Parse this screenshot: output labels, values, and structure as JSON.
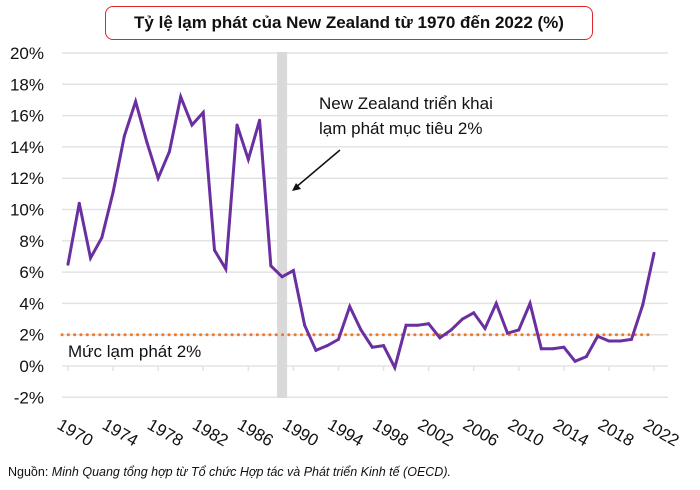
{
  "chart_data": {
    "type": "line",
    "title": "Tỷ lệ lạm phát của New Zealand từ 1970 đến 2022 (%)",
    "xlabel": "",
    "ylabel": "",
    "ylim": [
      -2,
      20
    ],
    "xlim": [
      1970,
      2022
    ],
    "y_ticks": [
      "-2%",
      "0%",
      "2%",
      "4%",
      "6%",
      "8%",
      "10%",
      "12%",
      "14%",
      "16%",
      "18%",
      "20%"
    ],
    "y_tick_values": [
      -2,
      0,
      2,
      4,
      6,
      8,
      10,
      12,
      14,
      16,
      18,
      20
    ],
    "x_ticks": [
      "1970",
      "1974",
      "1978",
      "1982",
      "1986",
      "1990",
      "1994",
      "1998",
      "2002",
      "2006",
      "2010",
      "2014",
      "2018",
      "2022"
    ],
    "grid": true,
    "series": [
      {
        "name": "Tỷ lệ lạm phát",
        "color": "#6a2fa0",
        "x": [
          1970,
          1971,
          1972,
          1973,
          1974,
          1975,
          1976,
          1977,
          1978,
          1979,
          1980,
          1981,
          1982,
          1983,
          1984,
          1985,
          1986,
          1987,
          1988,
          1989,
          1990,
          1991,
          1992,
          1993,
          1994,
          1995,
          1996,
          1997,
          1998,
          1999,
          2000,
          2001,
          2002,
          2003,
          2004,
          2005,
          2006,
          2007,
          2008,
          2009,
          2010,
          2011,
          2012,
          2013,
          2014,
          2015,
          2016,
          2017,
          2018,
          2019,
          2020,
          2021,
          2022
        ],
        "values": [
          6.5,
          10.4,
          6.9,
          8.2,
          11.1,
          14.7,
          16.9,
          14.3,
          12.0,
          13.7,
          17.2,
          15.4,
          16.2,
          7.4,
          6.2,
          15.4,
          13.2,
          15.7,
          6.4,
          5.7,
          6.1,
          2.6,
          1.0,
          1.3,
          1.7,
          3.8,
          2.3,
          1.2,
          1.3,
          -0.1,
          2.6,
          2.6,
          2.7,
          1.8,
          2.3,
          3.0,
          3.4,
          2.4,
          4.0,
          2.1,
          2.3,
          4.0,
          1.1,
          1.1,
          1.2,
          0.3,
          0.6,
          1.9,
          1.6,
          1.6,
          1.7,
          3.9,
          7.2
        ]
      }
    ],
    "reference_line": {
      "value": 2,
      "label": "Mức lạm phát 2%",
      "color": "#f07a28"
    },
    "highlight_band": {
      "year": 1989,
      "color": "#d9d9d9"
    },
    "annotation": {
      "line1": "New Zealand triển khai",
      "line2": "lạm phát mục tiêu 2%"
    }
  },
  "source": {
    "prefix": "Nguồn: ",
    "text": "Minh Quang tổng hợp từ Tổ chức Hợp tác và Phát triển Kinh tế (OECD)."
  }
}
